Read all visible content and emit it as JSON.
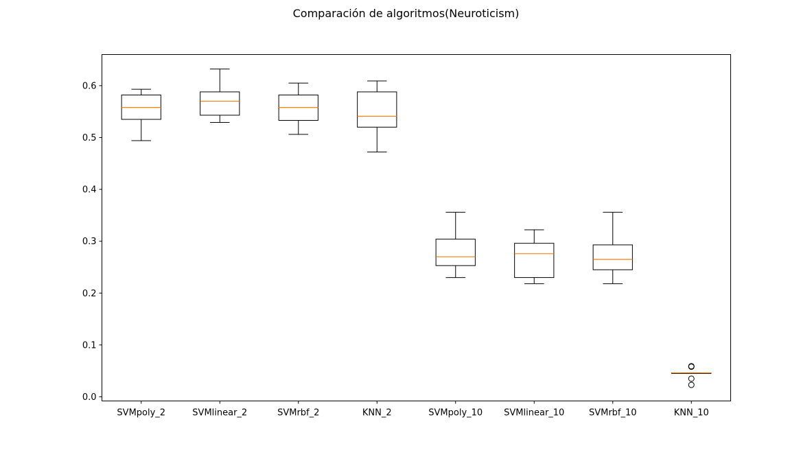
{
  "chart_data": {
    "type": "boxplot",
    "title": "Comparación de algoritmos(Neuroticism)",
    "xlabel": "",
    "ylabel": "",
    "ylim": [
      -0.008,
      0.66
    ],
    "yticks": [
      0.0,
      0.1,
      0.2,
      0.3,
      0.4,
      0.5,
      0.6
    ],
    "ytick_labels": [
      "0.0",
      "0.1",
      "0.2",
      "0.3",
      "0.4",
      "0.5",
      "0.6"
    ],
    "categories": [
      "SVMpoly_2",
      "SVMlinear_2",
      "SVMrbf_2",
      "KNN_2",
      "SVMpoly_10",
      "SVMlinear_10",
      "SVMrbf_10",
      "KNN_10"
    ],
    "boxes": [
      {
        "label": "SVMpoly_2",
        "whislo": 0.494,
        "q1": 0.535,
        "med": 0.558,
        "q3": 0.582,
        "whishi": 0.593,
        "fliers": []
      },
      {
        "label": "SVMlinear_2",
        "whislo": 0.529,
        "q1": 0.543,
        "med": 0.57,
        "q3": 0.588,
        "whishi": 0.632,
        "fliers": []
      },
      {
        "label": "SVMrbf_2",
        "whislo": 0.506,
        "q1": 0.533,
        "med": 0.558,
        "q3": 0.582,
        "whishi": 0.605,
        "fliers": []
      },
      {
        "label": "KNN_2",
        "whislo": 0.472,
        "q1": 0.52,
        "med": 0.541,
        "q3": 0.588,
        "whishi": 0.609,
        "fliers": []
      },
      {
        "label": "SVMpoly_10",
        "whislo": 0.23,
        "q1": 0.253,
        "med": 0.27,
        "q3": 0.304,
        "whishi": 0.356,
        "fliers": []
      },
      {
        "label": "SVMlinear_10",
        "whislo": 0.218,
        "q1": 0.23,
        "med": 0.276,
        "q3": 0.296,
        "whishi": 0.322,
        "fliers": []
      },
      {
        "label": "SVMrbf_10",
        "whislo": 0.218,
        "q1": 0.245,
        "med": 0.265,
        "q3": 0.293,
        "whishi": 0.356,
        "fliers": []
      },
      {
        "label": "KNN_10",
        "whislo": 0.046,
        "q1": 0.046,
        "med": 0.046,
        "q3": 0.046,
        "whishi": 0.046,
        "fliers": [
          0.058,
          0.059,
          0.035,
          0.023
        ]
      }
    ],
    "grid": false,
    "colors": {
      "box": "#000000",
      "median": "#ff7f0e",
      "background": "#ffffff"
    }
  }
}
